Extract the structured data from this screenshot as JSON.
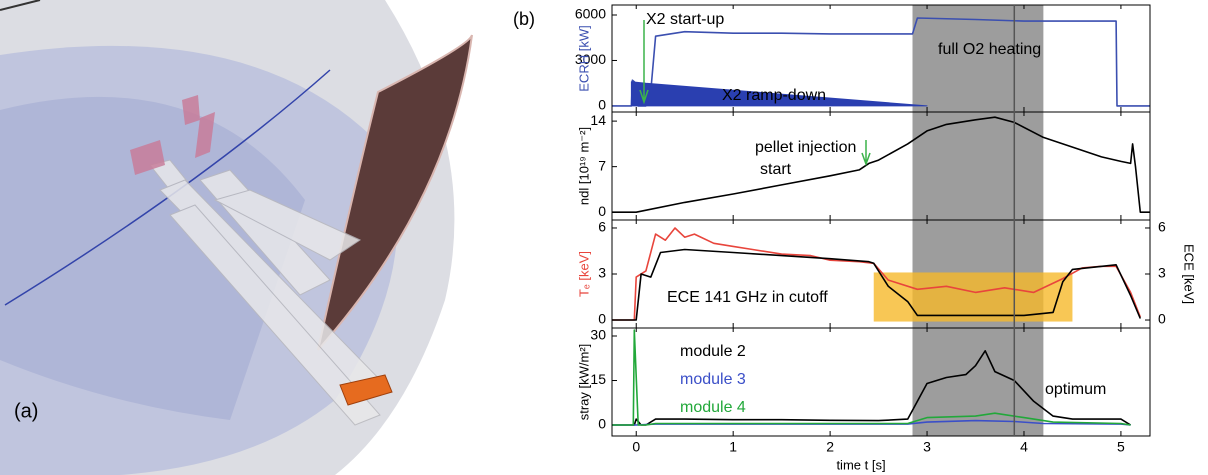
{
  "figure_labels": [
    "(a)",
    "(b)"
  ],
  "time_axis": {
    "label": "time t [s]",
    "xlim": [
      -0.25,
      5.3
    ],
    "xticks": [
      0,
      1,
      2,
      3,
      4,
      5
    ],
    "shaded_span": [
      2.85,
      4.2
    ],
    "marker_line": 3.9
  },
  "chart_data": [
    {
      "type": "line",
      "ylabel": "ECRH [kW]",
      "ylim": [
        -400,
        6660
      ],
      "yticks": [
        0,
        3000,
        6000
      ],
      "annotations": [
        "X2 start-up",
        "full O2 heating",
        "X2 ramp-down"
      ],
      "series": [
        {
          "color": "#3b4fb0",
          "x": [
            -0.25,
            -0.05,
            -0.04,
            -0.02,
            0.0,
            0.02,
            0.1,
            0.15,
            0.2,
            0.5,
            1,
            1.5,
            2,
            2.5,
            2.85,
            2.9,
            3.5,
            4,
            4.5,
            4.95,
            4.96,
            5.3
          ],
          "values": [
            0,
            0,
            1700,
            1600,
            200,
            0,
            0,
            1000,
            4600,
            4900,
            4800,
            4800,
            4750,
            4750,
            4750,
            5800,
            5700,
            5600,
            5600,
            5600,
            0,
            0
          ]
        },
        {
          "color": "#2a3fb0",
          "fill": true,
          "x": [
            -0.05,
            -0.05,
            0.1,
            3.0
          ],
          "values": [
            0,
            1600,
            1500,
            0
          ]
        }
      ]
    },
    {
      "type": "line",
      "ylabel": "ndl [10¹⁹ m⁻²]",
      "ylim": [
        -1.2,
        15.4
      ],
      "yticks": [
        0,
        7,
        14
      ],
      "annotations": [
        "pellet injection",
        "start"
      ],
      "series": [
        {
          "color": "#000000",
          "x": [
            -0.25,
            0,
            0.5,
            1,
            1.5,
            2,
            2.3,
            2.4,
            2.5,
            2.8,
            3.0,
            3.2,
            3.5,
            3.7,
            3.9,
            4.2,
            4.5,
            4.8,
            5.0,
            5.1,
            5.12,
            5.15,
            5.2,
            5.3
          ],
          "values": [
            0,
            0,
            1.5,
            2.8,
            4.2,
            5.6,
            6.5,
            7.5,
            8,
            10.5,
            12.5,
            13.5,
            14.2,
            14.6,
            13.8,
            11.5,
            10,
            8.5,
            7.8,
            7.5,
            10.5,
            7,
            0,
            0
          ]
        }
      ]
    },
    {
      "type": "line",
      "ylabel": "Tₑ [keV]",
      "ylim": [
        -0.52,
        6.52
      ],
      "yticks": [
        0,
        3,
        6
      ],
      "y2label": "ECE [keV]",
      "y2lim": [
        -0.52,
        6.52
      ],
      "y2ticks": [
        0,
        3,
        6
      ],
      "highlight": {
        "x": [
          2.45,
          4.5
        ],
        "y": [
          -0.1,
          3.1
        ],
        "color": "#f6b92b"
      },
      "annotations": [
        "ECE 141 GHz in cutoff"
      ],
      "series": [
        {
          "color": "#e8453c",
          "x": [
            -0.25,
            -0.02,
            0,
            0.1,
            0.2,
            0.3,
            0.4,
            0.5,
            0.6,
            0.8,
            1,
            1.2,
            1.5,
            1.8,
            2,
            2.3,
            2.45,
            2.6,
            2.9,
            3.2,
            3.5,
            3.8,
            4.1,
            4.4,
            4.6,
            4.8,
            4.95,
            5.1,
            5.2
          ],
          "values": [
            0,
            0,
            2.8,
            3.2,
            5.6,
            5.2,
            6.0,
            5.4,
            5.6,
            5.0,
            4.8,
            4.6,
            4.3,
            4.2,
            3.9,
            3.8,
            3.7,
            2.6,
            2.0,
            2.2,
            1.8,
            2.1,
            1.8,
            2.7,
            3.4,
            3.5,
            3.5,
            1.8,
            0.2
          ]
        },
        {
          "color": "#000000",
          "axis": "y2",
          "x": [
            -0.25,
            0,
            0.05,
            0.15,
            0.25,
            0.5,
            1,
            1.5,
            2,
            2.4,
            2.45,
            2.6,
            2.8,
            2.9,
            4,
            4.3,
            4.4,
            4.5,
            4.95,
            5.1,
            5.2
          ],
          "values": [
            0,
            0,
            3.0,
            2.8,
            4.4,
            4.6,
            4.4,
            4.2,
            4.0,
            3.8,
            3.7,
            2.2,
            1.2,
            0.3,
            0.3,
            0.5,
            2.5,
            3.3,
            3.6,
            1.6,
            0.1
          ]
        }
      ]
    },
    {
      "type": "line",
      "ylabel": "stray [kW/m²]",
      "ylim": [
        -3.7,
        32.7
      ],
      "yticks": [
        0,
        15,
        30
      ],
      "annotations": [
        "optimum"
      ],
      "series": [
        {
          "name": "module 2",
          "color": "#000000",
          "x": [
            -0.25,
            -0.02,
            0,
            0.05,
            0.1,
            0.2,
            0.5,
            1,
            1.5,
            2,
            2.5,
            2.8,
            2.9,
            3.0,
            3.2,
            3.4,
            3.5,
            3.6,
            3.7,
            3.9,
            4.1,
            4.3,
            4.5,
            5.0,
            5.1
          ],
          "values": [
            0,
            0,
            2,
            0,
            0,
            2,
            2,
            1.8,
            1.8,
            1.6,
            1.5,
            2,
            8,
            14,
            16,
            17,
            20,
            25,
            18,
            15,
            8,
            3,
            2,
            2,
            0
          ]
        },
        {
          "name": "module 3",
          "color": "#3b4fc8",
          "x": [
            -0.25,
            0,
            0.2,
            2.8,
            3.0,
            3.5,
            3.9,
            4.2,
            5.0,
            5.1
          ],
          "values": [
            0,
            0,
            0.3,
            0.3,
            1,
            1.5,
            1.2,
            0.5,
            0.3,
            0
          ]
        },
        {
          "name": "module 4",
          "color": "#22a83a",
          "x": [
            -0.25,
            -0.03,
            -0.02,
            0.02,
            0.1,
            0.2,
            2.8,
            3.0,
            3.5,
            3.7,
            4.0,
            4.3,
            5.0,
            5.1
          ],
          "values": [
            0,
            0,
            32,
            0,
            0,
            0.5,
            0.5,
            2.5,
            3,
            4,
            2.5,
            1,
            0.5,
            0
          ]
        }
      ]
    }
  ]
}
